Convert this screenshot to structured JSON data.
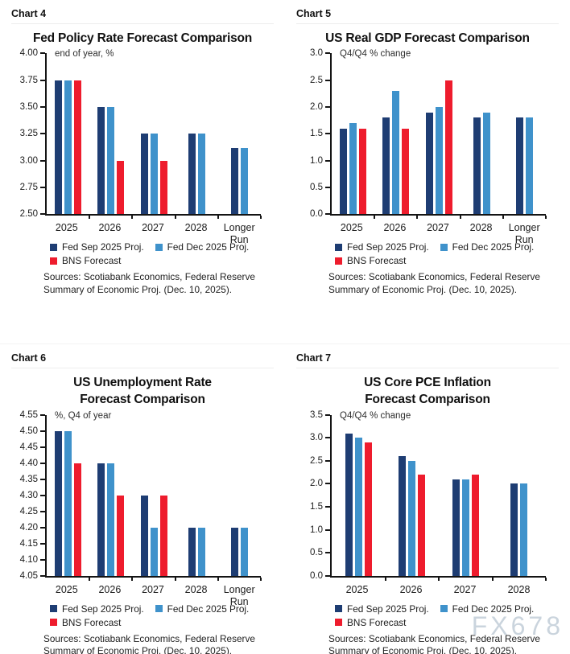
{
  "page": {
    "watermark": "FX678"
  },
  "chart_data": [
    {
      "tag": "Chart 4",
      "type": "bar",
      "title_lines": [
        "Fed Policy Rate Forecast Comparison"
      ],
      "annotation": "end of year, %",
      "ylim": [
        2.5,
        4.0
      ],
      "yticks": [
        "4.00",
        "3.75",
        "3.50",
        "3.25",
        "3.00",
        "2.75",
        "2.50"
      ],
      "categories": [
        "2025",
        "2026",
        "2027",
        "2028",
        "Longer\nRun"
      ],
      "series": [
        {
          "name": "Fed Sep 2025 Proj.",
          "color": "#1E3D73",
          "values": [
            3.75,
            3.5,
            3.25,
            3.25,
            3.12
          ]
        },
        {
          "name": "Fed Dec 2025 Proj.",
          "color": "#3F92CB",
          "values": [
            3.75,
            3.5,
            3.25,
            3.25,
            3.12
          ]
        },
        {
          "name": "BNS Forecast",
          "color": "#EE1C2D",
          "values": [
            3.75,
            3.0,
            3.0,
            null,
            null
          ]
        }
      ],
      "grid": false,
      "legend_position": "bottom",
      "sources": "Sources: Scotiabank Economics, Federal Reserve Summary of Economic Proj. (Dec. 10, 2025)."
    },
    {
      "tag": "Chart 5",
      "type": "bar",
      "title_lines": [
        "US Real GDP Forecast Comparison"
      ],
      "annotation": "Q4/Q4 % change",
      "ylim": [
        0.0,
        3.0
      ],
      "yticks": [
        "3.0",
        "2.5",
        "2.0",
        "1.5",
        "1.0",
        "0.5",
        "0.0"
      ],
      "categories": [
        "2025",
        "2026",
        "2027",
        "2028",
        "Longer\nRun"
      ],
      "series": [
        {
          "name": "Fed Sep 2025 Proj.",
          "color": "#1E3D73",
          "values": [
            1.6,
            1.8,
            1.9,
            1.8,
            1.8
          ]
        },
        {
          "name": "Fed Dec 2025 Proj.",
          "color": "#3F92CB",
          "values": [
            1.7,
            2.3,
            2.0,
            1.9,
            1.8
          ]
        },
        {
          "name": "BNS Forecast",
          "color": "#EE1C2D",
          "values": [
            1.6,
            1.6,
            2.5,
            null,
            null
          ]
        }
      ],
      "grid": false,
      "legend_position": "bottom",
      "sources": "Sources: Scotiabank Economics, Federal Reserve Summary of Economic Proj. (Dec. 10, 2025)."
    },
    {
      "tag": "Chart 6",
      "type": "bar",
      "title_lines": [
        "US Unemployment Rate",
        "Forecast Comparison"
      ],
      "annotation": "%, Q4 of year",
      "ylim": [
        4.05,
        4.55
      ],
      "yticks": [
        "4.55",
        "4.50",
        "4.45",
        "4.40",
        "4.35",
        "4.30",
        "4.25",
        "4.20",
        "4.15",
        "4.10",
        "4.05"
      ],
      "categories": [
        "2025",
        "2026",
        "2027",
        "2028",
        "Longer\nRun"
      ],
      "series": [
        {
          "name": "Fed Sep 2025 Proj.",
          "color": "#1E3D73",
          "values": [
            4.5,
            4.4,
            4.3,
            4.2,
            4.2
          ]
        },
        {
          "name": "Fed Dec 2025 Proj.",
          "color": "#3F92CB",
          "values": [
            4.5,
            4.4,
            4.2,
            4.2,
            4.2
          ]
        },
        {
          "name": "BNS Forecast",
          "color": "#EE1C2D",
          "values": [
            4.4,
            4.3,
            4.3,
            null,
            null
          ]
        }
      ],
      "grid": false,
      "legend_position": "bottom",
      "sources": "Sources: Scotiabank Economics, Federal Reserve Summary of Economic Proj. (Dec. 10, 2025)."
    },
    {
      "tag": "Chart 7",
      "type": "bar",
      "title_lines": [
        "US Core PCE Inflation",
        "Forecast Comparison"
      ],
      "annotation": "Q4/Q4 % change",
      "ylim": [
        0.0,
        3.5
      ],
      "yticks": [
        "3.5",
        "3.0",
        "2.5",
        "2.0",
        "1.5",
        "1.0",
        "0.5",
        "0.0"
      ],
      "categories": [
        "2025",
        "2026",
        "2027",
        "2028"
      ],
      "series": [
        {
          "name": "Fed Sep 2025 Proj.",
          "color": "#1E3D73",
          "values": [
            3.1,
            2.6,
            2.1,
            2.0
          ]
        },
        {
          "name": "Fed Dec 2025 Proj.",
          "color": "#3F92CB",
          "values": [
            3.0,
            2.5,
            2.1,
            2.0
          ]
        },
        {
          "name": "BNS Forecast",
          "color": "#EE1C2D",
          "values": [
            2.9,
            2.2,
            2.2,
            null
          ]
        }
      ],
      "grid": false,
      "legend_position": "bottom",
      "sources": "Sources: Scotiabank Economics, Federal Reserve Summary of Economic Proj. (Dec. 10, 2025)."
    }
  ]
}
